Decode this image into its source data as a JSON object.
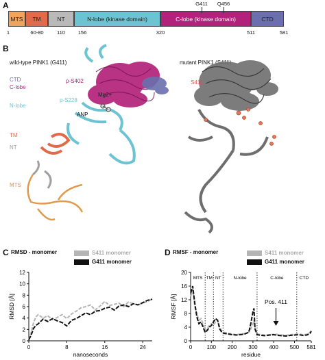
{
  "panel_a": {
    "letter": "A",
    "domains": [
      {
        "label": "MTS",
        "color": "#f2a35c"
      },
      {
        "label": "TM",
        "color": "#e06a4a"
      },
      {
        "label": "NT",
        "color": "#b9b9b9"
      },
      {
        "label": "N-lobe (kinase domain)",
        "color": "#6cc3d2"
      },
      {
        "label": "C-lobe (kinase domain)",
        "color": "#b2227a"
      },
      {
        "label": "CTD",
        "color": "#6b6fae"
      }
    ],
    "boundaries": [
      "1",
      "60-80",
      "110",
      "156",
      "320",
      "511",
      "581"
    ],
    "mutations": [
      "G411",
      "Q456"
    ]
  },
  "panel_b": {
    "letter": "B",
    "wt_title": "wild-type PINK1 (G411)",
    "mut_title": "mutant PINK1 (S411)",
    "wt_labels": {
      "ctd": "CTD",
      "clobe": "C-lobe",
      "nlobe": "N-lobe",
      "ps402": "p-S402",
      "ps228": "p-S228",
      "mg": "Mg2+",
      "anp": "ANP",
      "tm": "TM",
      "nt": "NT",
      "mts": "MTS"
    },
    "mut_labels": {
      "s411": "S411"
    },
    "colors": {
      "ctd": "#6b6fae",
      "clobe": "#b2227a",
      "nlobe": "#6cc3d2",
      "tm": "#e06a4a",
      "nt": "#9a9a9a",
      "mts": "#e09a4a",
      "mutant": "#6e6e6e",
      "s411": "#d9534f"
    }
  },
  "panel_c": {
    "letter": "C",
    "title": "RMSD - monomer",
    "legend": [
      "S411 monomer",
      "G411 monomer"
    ],
    "chart_data": {
      "type": "line",
      "xlabel": "nanoseconds",
      "ylabel": "RMSD [Å]",
      "xlim": [
        0,
        26
      ],
      "ylim": [
        0,
        12
      ],
      "xticks": [
        "0",
        "8",
        "16",
        "24"
      ],
      "yticks": [
        "0",
        "2",
        "4",
        "6",
        "8",
        "10",
        "12"
      ],
      "x": [
        0,
        0.5,
        1,
        1.5,
        2,
        3,
        4,
        5,
        6,
        7,
        8,
        9,
        10,
        11,
        12,
        13,
        14,
        15,
        16,
        17,
        18,
        19,
        20,
        21,
        22,
        23,
        24,
        25,
        26
      ],
      "series": [
        {
          "name": "S411 monomer",
          "color": "#b5b5b5",
          "values": [
            0.2,
            1.5,
            3.2,
            4.2,
            4.6,
            4.0,
            4.4,
            3.7,
            4.1,
            4.6,
            3.9,
            4.7,
            5.2,
            5.8,
            6.0,
            6.3,
            5.4,
            6.1,
            6.9,
            6.2,
            6.4,
            6.6,
            6.0,
            6.8,
            6.5,
            6.3,
            6.6,
            6.9,
            7.3
          ]
        },
        {
          "name": "G411 monomer",
          "color": "#111111",
          "values": [
            0.2,
            1.0,
            2.2,
            2.7,
            3.0,
            3.8,
            3.4,
            3.9,
            3.5,
            3.2,
            2.6,
            3.6,
            3.9,
            4.4,
            4.9,
            4.6,
            5.2,
            5.3,
            5.7,
            5.9,
            5.4,
            6.1,
            6.3,
            6.0,
            6.5,
            6.3,
            6.7,
            7.1,
            7.3
          ]
        }
      ]
    }
  },
  "panel_d": {
    "letter": "D",
    "title": "RMSF - monomer",
    "legend": [
      "S411 monomer",
      "G411 monomer"
    ],
    "domain_labels": [
      "MTS",
      "TM",
      "NT",
      "N-lobe",
      "C-lobe",
      "CTD"
    ],
    "annotation": "Pos. 411",
    "chart_data": {
      "type": "line",
      "xlabel": "residue",
      "ylabel": "RMSF [Å]",
      "xlim": [
        0,
        581
      ],
      "ylim": [
        0,
        20
      ],
      "xticks": [
        "0",
        "100",
        "200",
        "300",
        "400",
        "500",
        "581"
      ],
      "yticks": [
        "0",
        "4",
        "8",
        "12",
        "16",
        "20"
      ],
      "dividers": [
        70,
        110,
        156,
        320,
        511
      ],
      "x": [
        1,
        10,
        20,
        30,
        40,
        50,
        60,
        70,
        80,
        90,
        100,
        110,
        120,
        130,
        140,
        150,
        160,
        180,
        200,
        220,
        240,
        260,
        280,
        290,
        300,
        305,
        310,
        320,
        340,
        360,
        380,
        400,
        411,
        420,
        440,
        460,
        480,
        500,
        520,
        540,
        560,
        575,
        581
      ],
      "series": [
        {
          "name": "S411 monomer",
          "color": "#b5b5b5",
          "values": [
            13.0,
            15.0,
            10.0,
            8.0,
            6.0,
            6.5,
            5.0,
            3.0,
            3.5,
            4.5,
            5.0,
            4.5,
            5.5,
            6.0,
            4.0,
            3.0,
            2.5,
            2.2,
            2.0,
            1.8,
            2.0,
            2.1,
            2.5,
            3.5,
            5.0,
            6.0,
            4.0,
            2.0,
            1.8,
            1.7,
            1.8,
            1.9,
            2.0,
            1.8,
            1.7,
            1.6,
            1.8,
            1.9,
            2.0,
            1.8,
            1.9,
            2.5,
            3.0
          ]
        },
        {
          "name": "G411 monomer",
          "color": "#111111",
          "values": [
            14.0,
            16.0,
            11.0,
            7.0,
            5.0,
            5.5,
            4.0,
            2.5,
            3.0,
            4.0,
            4.5,
            5.5,
            6.5,
            6.0,
            3.5,
            2.5,
            2.2,
            2.0,
            1.8,
            1.7,
            1.8,
            2.0,
            2.5,
            5.0,
            8.5,
            9.5,
            3.5,
            1.8,
            1.6,
            1.5,
            1.7,
            1.8,
            1.7,
            1.6,
            1.5,
            1.4,
            1.6,
            1.7,
            1.8,
            1.6,
            1.7,
            2.2,
            2.8
          ]
        }
      ]
    }
  }
}
